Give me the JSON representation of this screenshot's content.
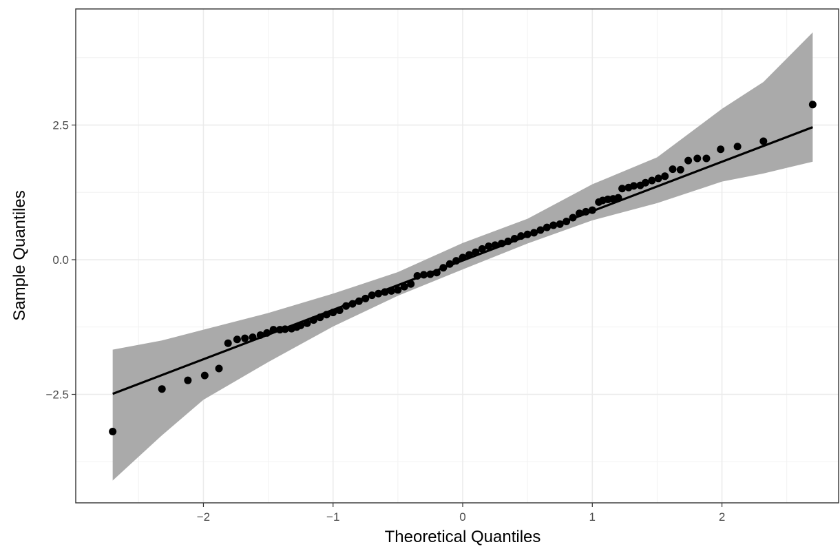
{
  "chart_data": {
    "type": "scatter",
    "xlabel": "Theoretical Quantiles",
    "ylabel": "Sample Quantiles",
    "xlim": [
      -2.985,
      2.9
    ],
    "ylim": [
      -4.514,
      4.655
    ],
    "xticks": [
      {
        "value": -2,
        "label": "−2"
      },
      {
        "value": -1,
        "label": "−1"
      },
      0,
      1,
      2
    ],
    "yticks": [
      {
        "value": -2.5,
        "label": "−2.5"
      },
      {
        "value": 0,
        "label": "0.0"
      },
      2.5
    ],
    "minor_xticks": [
      -2.5,
      -1.5,
      -0.5,
      0.5,
      1.5,
      2.5
    ],
    "minor_yticks": [
      -3.75,
      -1.25,
      1.25,
      3.75
    ],
    "grid": true,
    "point_color": "#000000",
    "line_color": "#000000",
    "band_color": "#aaaaaa",
    "points": {
      "x": [
        -2.7,
        -2.32,
        -2.12,
        -1.99,
        -1.88,
        -1.81,
        -1.74,
        -1.68,
        -1.62,
        -1.56,
        -1.51,
        -1.46,
        -1.41,
        -1.37,
        -1.32,
        -1.28,
        -1.25,
        -1.2,
        -1.15,
        -1.1,
        -1.05,
        -1.0,
        -0.95,
        -0.9,
        -0.85,
        -0.8,
        -0.75,
        -0.7,
        -0.65,
        -0.6,
        -0.55,
        -0.5,
        -0.45,
        -0.4,
        -0.35,
        -0.3,
        -0.25,
        -0.2,
        -0.15,
        -0.1,
        -0.05,
        0,
        0.05,
        0.1,
        0.15,
        0.2,
        0.25,
        0.3,
        0.35,
        0.4,
        0.45,
        0.5,
        0.55,
        0.6,
        0.65,
        0.7,
        0.75,
        0.8,
        0.85,
        0.9,
        0.95,
        1.0,
        1.05,
        1.08,
        1.12,
        1.16,
        1.2,
        1.23,
        1.28,
        1.32,
        1.37,
        1.41,
        1.46,
        1.51,
        1.56,
        1.62,
        1.68,
        1.74,
        1.81,
        1.88,
        1.99,
        2.12,
        2.32,
        2.7
      ],
      "y": [
        -3.19,
        -2.4,
        -2.24,
        -2.15,
        -2.02,
        -1.55,
        -1.48,
        -1.46,
        -1.44,
        -1.4,
        -1.36,
        -1.3,
        -1.3,
        -1.29,
        -1.28,
        -1.25,
        -1.22,
        -1.18,
        -1.12,
        -1.07,
        -1.02,
        -0.98,
        -0.94,
        -0.86,
        -0.82,
        -0.77,
        -0.72,
        -0.66,
        -0.63,
        -0.6,
        -0.58,
        -0.56,
        -0.5,
        -0.45,
        -0.3,
        -0.28,
        -0.27,
        -0.24,
        -0.15,
        -0.08,
        -0.02,
        0.04,
        0.09,
        0.14,
        0.2,
        0.25,
        0.27,
        0.3,
        0.34,
        0.39,
        0.44,
        0.47,
        0.5,
        0.55,
        0.6,
        0.64,
        0.66,
        0.71,
        0.78,
        0.86,
        0.89,
        0.92,
        1.07,
        1.1,
        1.12,
        1.13,
        1.15,
        1.32,
        1.34,
        1.37,
        1.38,
        1.43,
        1.47,
        1.51,
        1.55,
        1.68,
        1.67,
        1.84,
        1.88,
        1.88,
        2.05,
        2.1,
        2.2,
        2.88
      ]
    },
    "line": {
      "x": [
        -2.7,
        2.7
      ],
      "y": [
        -2.49,
        2.46
      ]
    },
    "band": {
      "x": [
        -2.7,
        -2.32,
        -2,
        -1.5,
        -1,
        -0.5,
        0,
        0.5,
        1,
        1.5,
        2,
        2.32,
        2.7
      ],
      "upper": [
        -1.67,
        -1.5,
        -1.3,
        -0.99,
        -0.63,
        -0.23,
        0.31,
        0.76,
        1.4,
        1.9,
        2.8,
        3.3,
        4.22
      ],
      "lower": [
        -4.1,
        -3.26,
        -2.6,
        -1.9,
        -1.24,
        -0.67,
        -0.18,
        0.3,
        0.73,
        1.05,
        1.45,
        1.6,
        1.82
      ]
    }
  }
}
